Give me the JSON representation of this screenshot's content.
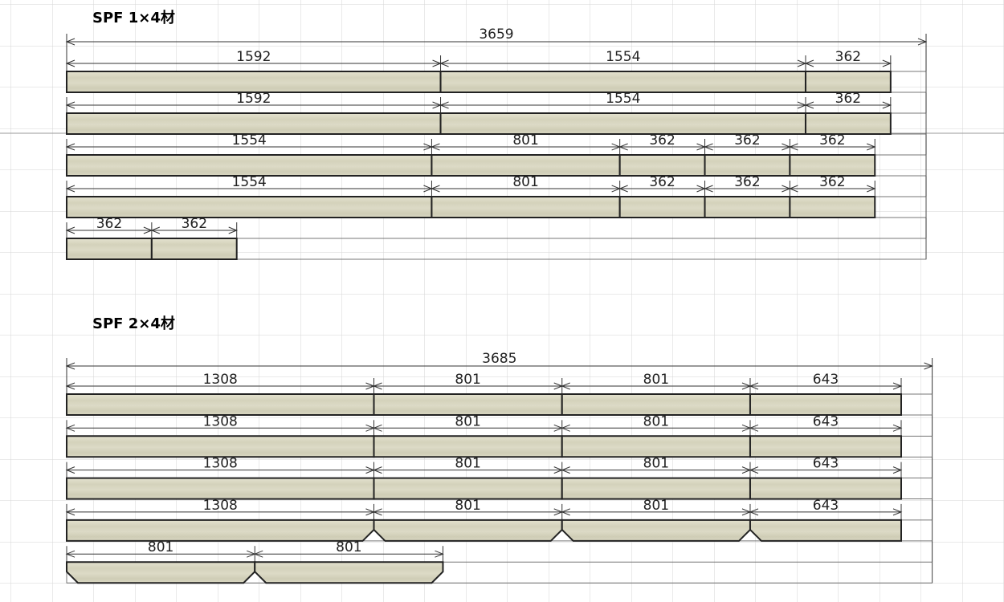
{
  "sections": [
    {
      "title": "SPF 1×4材",
      "total": 3659,
      "rows": [
        [
          1592,
          1554,
          362
        ],
        [
          1592,
          1554,
          362
        ],
        [
          1554,
          801,
          362,
          362,
          362
        ],
        [
          1554,
          801,
          362,
          362,
          362
        ],
        [
          362,
          362
        ]
      ]
    },
    {
      "title": "SPF 2×4材",
      "total": 3685,
      "rows": [
        [
          1308,
          801,
          801,
          643
        ],
        [
          1308,
          801,
          801,
          643
        ],
        [
          1308,
          801,
          801,
          643
        ],
        [
          1308,
          801,
          801,
          643
        ],
        [
          801,
          801
        ]
      ]
    }
  ]
}
